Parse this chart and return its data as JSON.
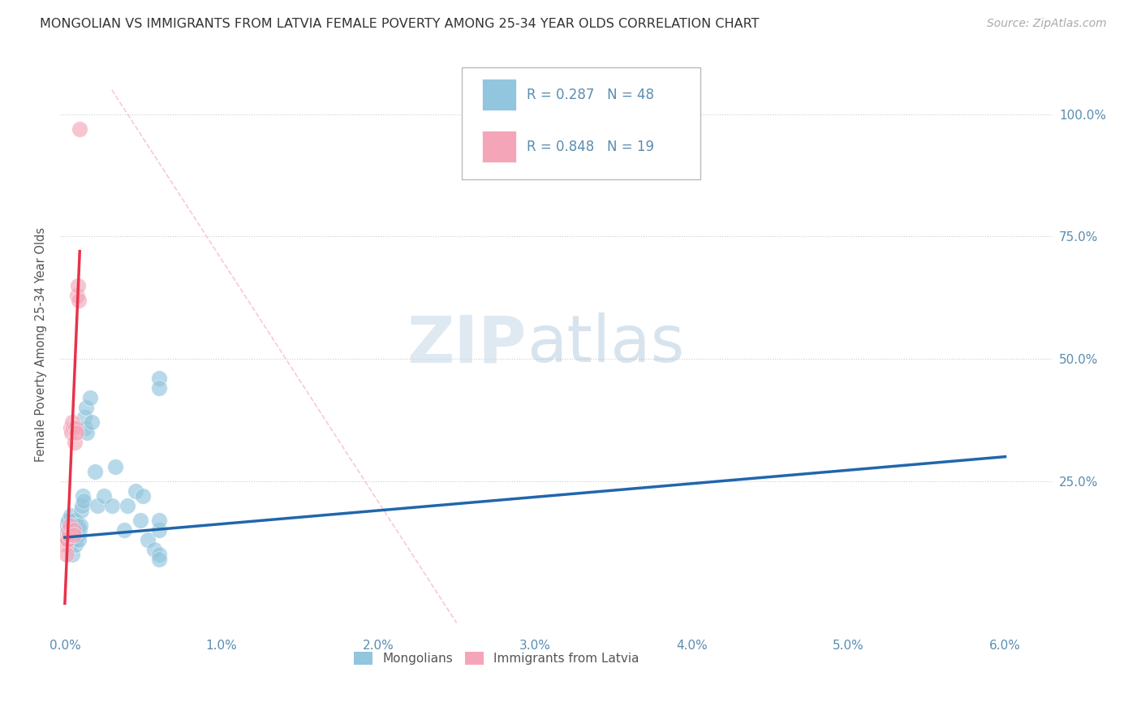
{
  "title": "MONGOLIAN VS IMMIGRANTS FROM LATVIA FEMALE POVERTY AMONG 25-34 YEAR OLDS CORRELATION CHART",
  "source": "Source: ZipAtlas.com",
  "ylabel": "Female Poverty Among 25-34 Year Olds",
  "xticklabels": [
    "0.0%",
    "1.0%",
    "2.0%",
    "3.0%",
    "4.0%",
    "5.0%",
    "6.0%"
  ],
  "yticklabels": [
    "",
    "25.0%",
    "50.0%",
    "75.0%",
    "100.0%"
  ],
  "blue_color": "#92c5de",
  "pink_color": "#f4a6b8",
  "blue_line_color": "#2166ac",
  "pink_line_color": "#e8324a",
  "dash_line_color": "#f4a6b8",
  "legend_R_blue": "R = 0.287",
  "legend_N_blue": "N = 48",
  "legend_R_pink": "R = 0.848",
  "legend_N_pink": "N = 19",
  "blue_scatter_x": [
    5e-05,
    0.0001,
    0.00015,
    0.0002,
    0.00025,
    0.0003,
    0.00035,
    0.0004,
    0.00045,
    0.0005,
    0.00055,
    0.0006,
    0.00065,
    0.0007,
    0.00075,
    0.0008,
    0.00085,
    0.0009,
    0.00095,
    0.001,
    0.00105,
    0.0011,
    0.00115,
    0.0012,
    0.00125,
    0.0013,
    0.00135,
    0.0014,
    0.0016,
    0.0017,
    0.0019,
    0.0021,
    0.0025,
    0.003,
    0.0032,
    0.0038,
    0.004,
    0.0045,
    0.0048,
    0.005,
    0.0053,
    0.0057,
    0.006,
    0.006,
    0.006,
    0.006,
    0.006,
    0.006
  ],
  "blue_scatter_y": [
    0.14,
    0.16,
    0.13,
    0.17,
    0.15,
    0.12,
    0.18,
    0.14,
    0.1,
    0.16,
    0.13,
    0.15,
    0.17,
    0.12,
    0.14,
    0.16,
    0.14,
    0.13,
    0.15,
    0.16,
    0.19,
    0.2,
    0.22,
    0.21,
    0.38,
    0.36,
    0.4,
    0.35,
    0.42,
    0.37,
    0.27,
    0.2,
    0.22,
    0.2,
    0.28,
    0.15,
    0.2,
    0.23,
    0.17,
    0.22,
    0.13,
    0.11,
    0.46,
    0.15,
    0.17,
    0.1,
    0.44,
    0.09
  ],
  "pink_scatter_x": [
    5e-05,
    0.0001,
    0.00015,
    0.0002,
    0.00025,
    0.0003,
    0.00035,
    0.0004,
    0.00045,
    0.0005,
    0.00055,
    0.0006,
    0.00065,
    0.0007,
    0.00075,
    0.0008,
    0.00085,
    0.0009,
    0.00095
  ],
  "pink_scatter_y": [
    0.12,
    0.1,
    0.13,
    0.15,
    0.14,
    0.16,
    0.36,
    0.35,
    0.37,
    0.36,
    0.15,
    0.14,
    0.33,
    0.36,
    0.35,
    0.63,
    0.65,
    0.62,
    0.97
  ],
  "blue_line_x0": 0.0,
  "blue_line_x1": 0.06,
  "blue_line_y0": 0.135,
  "blue_line_y1": 0.3,
  "pink_line_x0": 0.0,
  "pink_line_x1": 0.00095,
  "pink_line_y0": 0.0,
  "pink_line_y1": 0.72,
  "xlim_min": -0.0003,
  "xlim_max": 0.063,
  "ylim_min": -0.06,
  "ylim_max": 1.12
}
